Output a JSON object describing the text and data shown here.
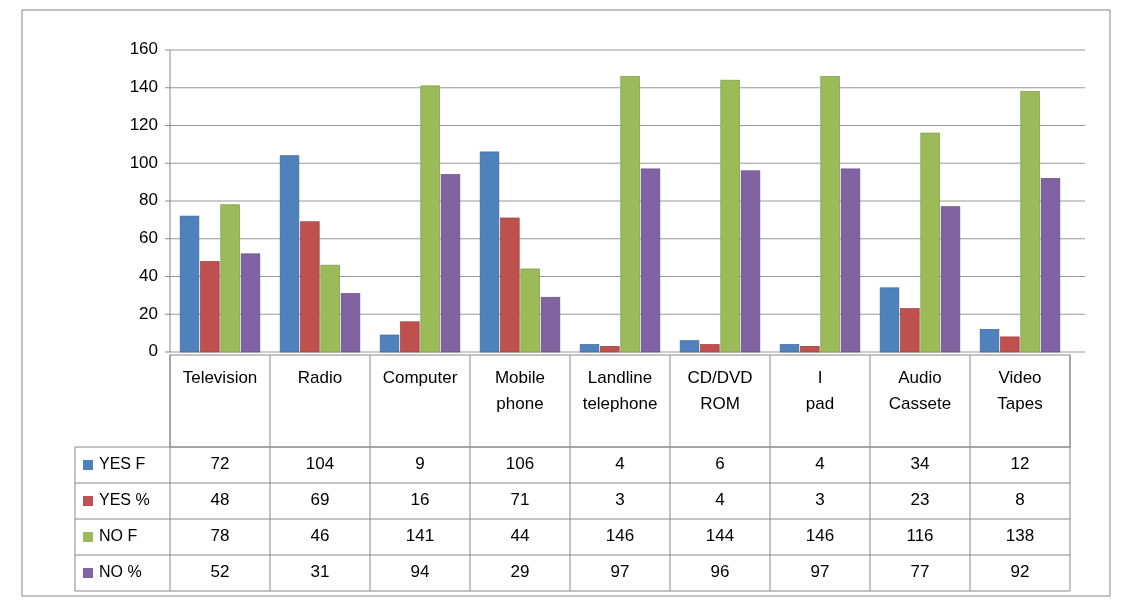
{
  "chart_data": {
    "type": "bar",
    "categories": [
      "Television",
      "Radio",
      "Computer",
      "Mobile phone",
      "Landline telephone",
      "CD/DVD ROM",
      "I pad",
      "Audio Cassete",
      "Video Tapes"
    ],
    "series": [
      {
        "name": "YES F",
        "color": "#4f81bd",
        "values": [
          72,
          104,
          9,
          106,
          4,
          6,
          4,
          34,
          12
        ]
      },
      {
        "name": "YES %",
        "color": "#c0504d",
        "values": [
          48,
          69,
          16,
          71,
          3,
          4,
          3,
          23,
          8
        ]
      },
      {
        "name": "NO F",
        "color": "#9bbb59",
        "values": [
          78,
          46,
          141,
          44,
          146,
          144,
          146,
          116,
          138
        ]
      },
      {
        "name": "NO %",
        "color": "#8064a2",
        "values": [
          52,
          31,
          94,
          29,
          97,
          96,
          97,
          77,
          92
        ]
      }
    ],
    "ylim": [
      0,
      160
    ],
    "yticks": [
      0,
      20,
      40,
      60,
      80,
      100,
      120,
      140,
      160
    ],
    "grid": "y",
    "legend": "bottom",
    "data_labels": true
  }
}
